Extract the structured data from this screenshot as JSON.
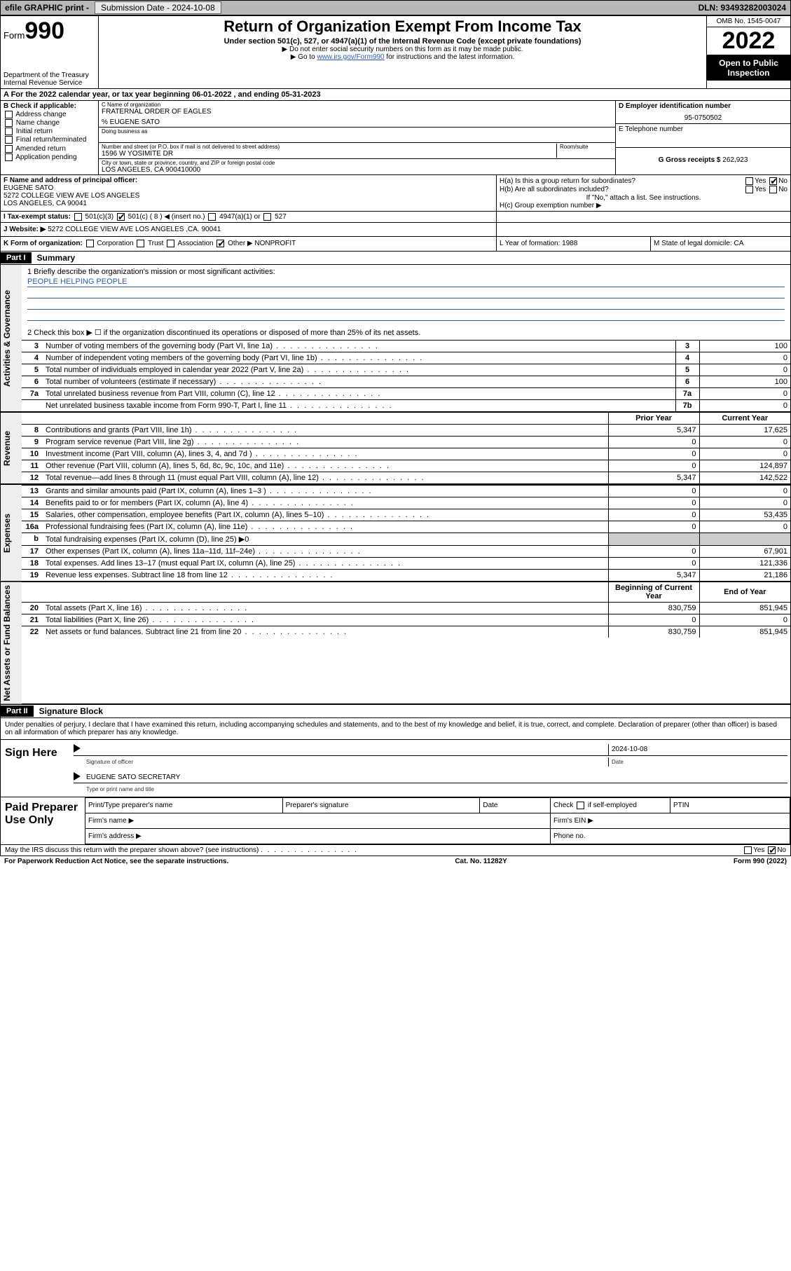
{
  "colors": {
    "topbar_bg": "#b8b8b8",
    "link": "#2a5db0",
    "black": "#000000",
    "shade": "#cccccc",
    "side_bg": "#eeeeee"
  },
  "topbar": {
    "efile": "efile GRAPHIC print -",
    "submission_label": "Submission Date - 2024-10-08",
    "dln": "DLN: 93493282003024"
  },
  "header": {
    "form_word": "Form",
    "form_number": "990",
    "dept1": "Department of the Treasury",
    "dept2": "Internal Revenue Service",
    "title": "Return of Organization Exempt From Income Tax",
    "sub1": "Under section 501(c), 527, or 4947(a)(1) of the Internal Revenue Code (except private foundations)",
    "sub2": "▶ Do not enter social security numbers on this form as it may be made public.",
    "sub3_pre": "▶ Go to ",
    "sub3_link": "www.irs.gov/Form990",
    "sub3_post": " for instructions and the latest information.",
    "omb": "OMB No. 1545-0047",
    "year": "2022",
    "open1": "Open to Public",
    "open2": "Inspection"
  },
  "rowA": {
    "text": "A For the 2022 calendar year, or tax year beginning 06-01-2022    , and ending 05-31-2023"
  },
  "boxB": {
    "title": "B Check if applicable:",
    "items": [
      "Address change",
      "Name change",
      "Initial return",
      "Final return/terminated",
      "Amended return",
      "Application pending"
    ]
  },
  "boxC": {
    "name_hint": "C Name of organization",
    "name": "FRATERNAL ORDER OF EAGLES",
    "care_of": "% EUGENE SATO",
    "dba_hint": "Doing business as",
    "street_hint": "Number and street (or P.O. box if mail is not delivered to street address)",
    "room_hint": "Room/suite",
    "street": "1596 W YOSIMITE DR",
    "city_hint": "City or town, state or province, country, and ZIP or foreign postal code",
    "city": "LOS ANGELES, CA  900410000"
  },
  "boxD": {
    "ein_label": "D Employer identification number",
    "ein": "95-0750502",
    "phone_label": "E Telephone number",
    "gross_label": "G Gross receipts $",
    "gross": "262,923"
  },
  "boxF": {
    "label": "F Name and address of principal officer:",
    "line1": "EUGENE SATO",
    "line2": "5272 COLLEGE VIEW AVE LOS ANGELES",
    "line3": "LOS ANGELES, CA  90041"
  },
  "boxH": {
    "a": "H(a)  Is this a group return for subordinates?",
    "a_yes": "Yes",
    "a_no": "No",
    "b": "H(b)  Are all subordinates included?",
    "b_note": "If \"No,\" attach a list. See instructions.",
    "c": "H(c)  Group exemption number ▶"
  },
  "rowI": {
    "label": "I  Tax-exempt status:",
    "opts": [
      "501(c)(3)",
      "501(c) ( 8 ) ◀ (insert no.)",
      "4947(a)(1) or",
      "527"
    ]
  },
  "rowJ": {
    "label": "J  Website: ▶",
    "value": "5272 COLLEGE VIEW AVE LOS ANGELES ,CA. 90041"
  },
  "rowK": {
    "label": "K Form of organization:",
    "opts": [
      "Corporation",
      "Trust",
      "Association",
      "Other ▶"
    ],
    "other": "NONPROFIT",
    "L": "L Year of formation: 1988",
    "M": "M State of legal domicile: CA"
  },
  "partI": {
    "hdr": "Part I",
    "title": "Summary",
    "q1_label": "1  Briefly describe the organization's mission or most significant activities:",
    "q1_value": "PEOPLE HELPING PEOPLE",
    "q2": "2  Check this box ▶ ☐  if the organization discontinued its operations or disposed of more than 25% of its net assets."
  },
  "gov_rows": [
    {
      "ln": "3",
      "desc": "Number of voting members of the governing body (Part VI, line 1a)",
      "box": "3",
      "val": "100"
    },
    {
      "ln": "4",
      "desc": "Number of independent voting members of the governing body (Part VI, line 1b)",
      "box": "4",
      "val": "0"
    },
    {
      "ln": "5",
      "desc": "Total number of individuals employed in calendar year 2022 (Part V, line 2a)",
      "box": "5",
      "val": "0"
    },
    {
      "ln": "6",
      "desc": "Total number of volunteers (estimate if necessary)",
      "box": "6",
      "val": "100"
    },
    {
      "ln": "7a",
      "desc": "Total unrelated business revenue from Part VIII, column (C), line 12",
      "box": "7a",
      "val": "0"
    },
    {
      "ln": "",
      "desc": "Net unrelated business taxable income from Form 990-T, Part I, line 11",
      "box": "7b",
      "val": "0"
    }
  ],
  "col_hdrs": {
    "prior": "Prior Year",
    "current": "Current Year"
  },
  "rev_rows": [
    {
      "ln": "8",
      "desc": "Contributions and grants (Part VIII, line 1h)",
      "p": "5,347",
      "c": "17,625"
    },
    {
      "ln": "9",
      "desc": "Program service revenue (Part VIII, line 2g)",
      "p": "0",
      "c": "0"
    },
    {
      "ln": "10",
      "desc": "Investment income (Part VIII, column (A), lines 3, 4, and 7d )",
      "p": "0",
      "c": "0"
    },
    {
      "ln": "11",
      "desc": "Other revenue (Part VIII, column (A), lines 5, 6d, 8c, 9c, 10c, and 11e)",
      "p": "0",
      "c": "124,897"
    },
    {
      "ln": "12",
      "desc": "Total revenue—add lines 8 through 11 (must equal Part VIII, column (A), line 12)",
      "p": "5,347",
      "c": "142,522"
    }
  ],
  "exp_rows": [
    {
      "ln": "13",
      "desc": "Grants and similar amounts paid (Part IX, column (A), lines 1–3 )",
      "p": "0",
      "c": "0"
    },
    {
      "ln": "14",
      "desc": "Benefits paid to or for members (Part IX, column (A), line 4)",
      "p": "0",
      "c": "0"
    },
    {
      "ln": "15",
      "desc": "Salaries, other compensation, employee benefits (Part IX, column (A), lines 5–10)",
      "p": "0",
      "c": "53,435"
    },
    {
      "ln": "16a",
      "desc": "Professional fundraising fees (Part IX, column (A), line 11e)",
      "p": "0",
      "c": "0"
    },
    {
      "ln": "b",
      "desc": "Total fundraising expenses (Part IX, column (D), line 25) ▶0",
      "p": "",
      "c": "",
      "shade": true
    },
    {
      "ln": "17",
      "desc": "Other expenses (Part IX, column (A), lines 11a–11d, 11f–24e)",
      "p": "0",
      "c": "67,901"
    },
    {
      "ln": "18",
      "desc": "Total expenses. Add lines 13–17 (must equal Part IX, column (A), line 25)",
      "p": "0",
      "c": "121,336"
    },
    {
      "ln": "19",
      "desc": "Revenue less expenses. Subtract line 18 from line 12",
      "p": "5,347",
      "c": "21,186"
    }
  ],
  "na_hdrs": {
    "beg": "Beginning of Current Year",
    "end": "End of Year"
  },
  "na_rows": [
    {
      "ln": "20",
      "desc": "Total assets (Part X, line 16)",
      "p": "830,759",
      "c": "851,945"
    },
    {
      "ln": "21",
      "desc": "Total liabilities (Part X, line 26)",
      "p": "0",
      "c": "0"
    },
    {
      "ln": "22",
      "desc": "Net assets or fund balances. Subtract line 21 from line 20",
      "p": "830,759",
      "c": "851,945"
    }
  ],
  "sides": {
    "gov": "Activities & Governance",
    "rev": "Revenue",
    "exp": "Expenses",
    "na": "Net Assets or Fund Balances"
  },
  "partII": {
    "hdr": "Part II",
    "title": "Signature Block",
    "intro": "Under penalties of perjury, I declare that I have examined this return, including accompanying schedules and statements, and to the best of my knowledge and belief, it is true, correct, and complete. Declaration of preparer (other than officer) is based on all information of which preparer has any knowledge."
  },
  "sign": {
    "label": "Sign Here",
    "sig_hint": "Signature of officer",
    "date": "2024-10-08",
    "date_hint": "Date",
    "name": "EUGENE SATO SECRETARY",
    "name_hint": "Type or print name and title"
  },
  "prep": {
    "label": "Paid Preparer Use Only",
    "h1": "Print/Type preparer's name",
    "h2": "Preparer's signature",
    "h3": "Date",
    "h4_pre": "Check",
    "h4_post": "if self-employed",
    "h5": "PTIN",
    "firm_name": "Firm's name  ▶",
    "firm_ein": "Firm's EIN ▶",
    "firm_addr": "Firm's address ▶",
    "phone": "Phone no."
  },
  "discuss": {
    "q": "May the IRS discuss this return with the preparer shown above? (see instructions)",
    "yes": "Yes",
    "no": "No"
  },
  "footer": {
    "left": "For Paperwork Reduction Act Notice, see the separate instructions.",
    "mid": "Cat. No. 11282Y",
    "right": "Form 990 (2022)"
  }
}
